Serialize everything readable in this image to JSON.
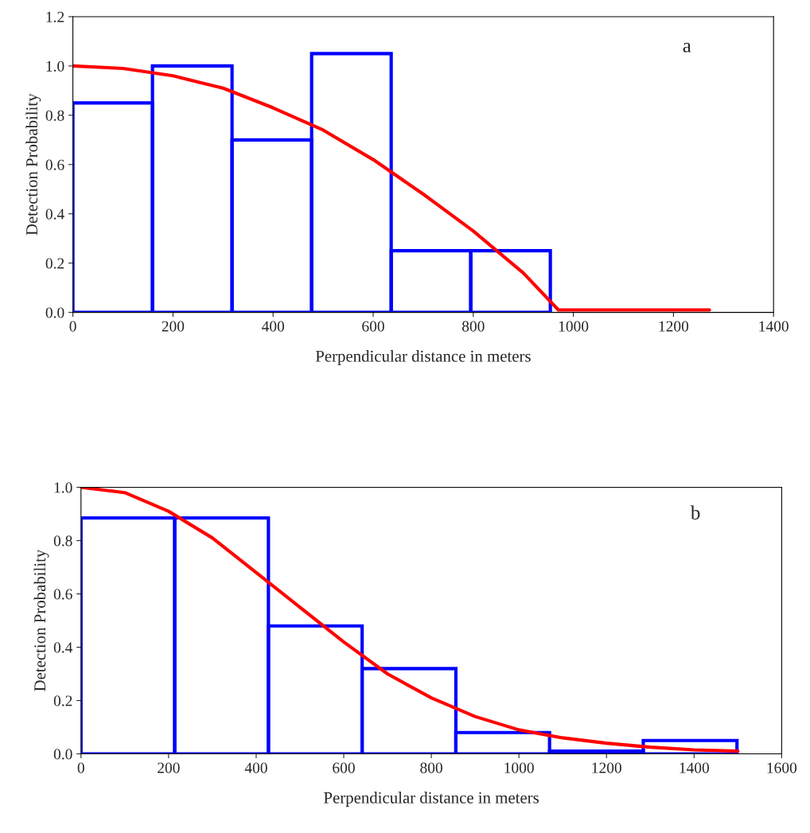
{
  "chart_data": [
    {
      "type": "histogram",
      "xlabel": "Perpendicular distance in meters",
      "ylabel": "Detection Probability",
      "annotations": [
        "a"
      ],
      "series": [
        {
          "type": "histogram",
          "color": "#0000ff",
          "bins": [
            0,
            159,
            318,
            477,
            636,
            795,
            954
          ],
          "values": [
            0.85,
            1.0,
            0.7,
            1.05,
            0.25,
            0.25
          ]
        },
        {
          "type": "line",
          "color": "#ff0000",
          "x": [
            0,
            100,
            200,
            300,
            400,
            500,
            600,
            700,
            800,
            900,
            970,
            1272
          ],
          "values": [
            1.0,
            0.99,
            0.96,
            0.91,
            0.83,
            0.74,
            0.62,
            0.48,
            0.33,
            0.16,
            0.01,
            0.01
          ]
        }
      ],
      "xlim": [
        0,
        1400
      ],
      "xticks": [
        0,
        200,
        400,
        600,
        800,
        1000,
        1200,
        1400
      ],
      "ylim": [
        0,
        1.2
      ],
      "yticks": [
        {
          "value": 0,
          "label": "0.0"
        },
        {
          "value": 0.2,
          "label": "0.2"
        },
        {
          "value": 0.4,
          "label": "0.4"
        },
        {
          "value": 0.6,
          "label": "0.6"
        },
        {
          "value": 0.8,
          "label": "0.8"
        },
        {
          "value": 1.0,
          "label": "1.0"
        },
        {
          "value": 1.2,
          "label": "1.2"
        }
      ],
      "grid": false,
      "legend": false
    },
    {
      "type": "histogram",
      "xlabel": "Perpendicular distance in meters",
      "ylabel": "Detection Probability",
      "annotations": [
        "b"
      ],
      "series": [
        {
          "type": "histogram",
          "color": "#0000ff",
          "bins": [
            0,
            214,
            428,
            642,
            856,
            1070,
            1284,
            1498
          ],
          "values": [
            0.885,
            0.885,
            0.48,
            0.32,
            0.08,
            0.01,
            0.05
          ]
        },
        {
          "type": "line",
          "color": "#ff0000",
          "x": [
            0,
            100,
            200,
            300,
            400,
            500,
            600,
            700,
            800,
            900,
            1000,
            1100,
            1200,
            1300,
            1400,
            1500
          ],
          "values": [
            1.0,
            0.98,
            0.91,
            0.81,
            0.68,
            0.55,
            0.42,
            0.3,
            0.21,
            0.14,
            0.09,
            0.06,
            0.04,
            0.025,
            0.015,
            0.01
          ]
        }
      ],
      "xlim": [
        0,
        1600
      ],
      "xticks": [
        0,
        200,
        400,
        600,
        800,
        1000,
        1200,
        1400,
        1600
      ],
      "ylim": [
        0,
        1.0
      ],
      "yticks": [
        {
          "value": 0,
          "label": "0.0"
        },
        {
          "value": 0.2,
          "label": "0.2"
        },
        {
          "value": 0.4,
          "label": "0.4"
        },
        {
          "value": 0.6,
          "label": "0.6"
        },
        {
          "value": 0.8,
          "label": "0.8"
        },
        {
          "value": 1.0,
          "label": "1.0"
        }
      ],
      "grid": false,
      "legend": false
    }
  ]
}
